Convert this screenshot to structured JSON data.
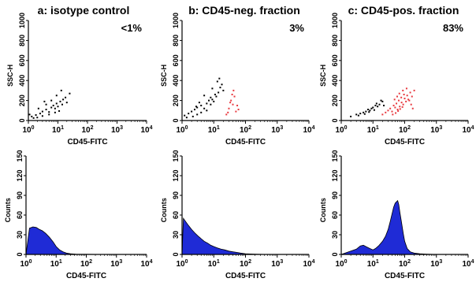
{
  "chart_data": [
    {
      "type": "scatter",
      "title": "a: isotype control",
      "annotation": "<1%",
      "xlabel": "CD45-FITC",
      "ylabel": "SSC-H",
      "x_scale": "log",
      "xlim": [
        1,
        10000
      ],
      "ylim": [
        0,
        1000
      ],
      "x_ticks": [
        1,
        10,
        100,
        1000,
        10000
      ],
      "y_ticks": [
        0,
        200,
        400,
        600,
        800,
        1000
      ],
      "series": [
        {
          "color": "#000000",
          "values": [
            [
              1.3,
              40
            ],
            [
              1.8,
              55
            ],
            [
              2.5,
              70
            ],
            [
              3,
              90
            ],
            [
              4,
              110
            ],
            [
              5,
              85
            ],
            [
              6,
              130
            ],
            [
              7,
              150
            ],
            [
              8,
              120
            ],
            [
              9,
              170
            ],
            [
              10,
              140
            ],
            [
              12,
              190
            ],
            [
              14,
              160
            ],
            [
              1.5,
              25
            ],
            [
              2,
              30
            ],
            [
              3,
              45
            ],
            [
              5,
              60
            ],
            [
              8,
              80
            ],
            [
              11,
              95
            ],
            [
              15,
              210
            ],
            [
              18,
              230
            ],
            [
              20,
              180
            ],
            [
              25,
              270
            ],
            [
              6,
              200
            ],
            [
              4,
              160
            ],
            [
              2.2,
              120
            ],
            [
              1.1,
              60
            ],
            [
              3.5,
              190
            ],
            [
              9,
              250
            ],
            [
              13,
              300
            ]
          ]
        }
      ]
    },
    {
      "type": "scatter",
      "title": "b: CD45-neg. fraction",
      "annotation": "3%",
      "xlabel": "CD45-FITC",
      "ylabel": "SSC-H",
      "x_scale": "log",
      "xlim": [
        1,
        10000
      ],
      "ylim": [
        0,
        1000
      ],
      "x_ticks": [
        1,
        10,
        100,
        1000,
        10000
      ],
      "y_ticks": [
        0,
        200,
        400,
        600,
        800,
        1000
      ],
      "series": [
        {
          "color": "#000000",
          "values": [
            [
              1.2,
              50
            ],
            [
              1.6,
              70
            ],
            [
              2,
              90
            ],
            [
              2.5,
              110
            ],
            [
              3,
              130
            ],
            [
              4,
              150
            ],
            [
              5,
              120
            ],
            [
              6,
              170
            ],
            [
              7,
              200
            ],
            [
              8,
              160
            ],
            [
              9,
              210
            ],
            [
              10,
              190
            ],
            [
              12,
              240
            ],
            [
              14,
              280
            ],
            [
              16,
              330
            ],
            [
              18,
              360
            ],
            [
              20,
              300
            ],
            [
              1.4,
              30
            ],
            [
              2.2,
              40
            ],
            [
              3,
              60
            ],
            [
              4,
              80
            ],
            [
              6,
              100
            ],
            [
              8,
              230
            ],
            [
              11,
              260
            ],
            [
              13,
              390
            ],
            [
              15,
              420
            ],
            [
              9,
              320
            ],
            [
              5,
              250
            ],
            [
              3.5,
              180
            ],
            [
              2.8,
              140
            ]
          ]
        },
        {
          "color": "#e8393f",
          "values": [
            [
              25,
              60
            ],
            [
              30,
              120
            ],
            [
              35,
              200
            ],
            [
              40,
              160
            ],
            [
              45,
              240
            ],
            [
              50,
              90
            ],
            [
              55,
              150
            ],
            [
              38,
              260
            ],
            [
              42,
              300
            ],
            [
              28,
              80
            ],
            [
              60,
              110
            ],
            [
              33,
              180
            ]
          ]
        }
      ]
    },
    {
      "type": "scatter",
      "title": "c: CD45-pos. fraction",
      "annotation": "83%",
      "xlabel": "CD45-FITC",
      "ylabel": "SSC-H",
      "x_scale": "log",
      "xlim": [
        1,
        10000
      ],
      "ylim": [
        0,
        1000
      ],
      "x_ticks": [
        1,
        10,
        100,
        1000,
        10000
      ],
      "y_ticks": [
        0,
        200,
        400,
        600,
        800,
        1000
      ],
      "series": [
        {
          "color": "#000000",
          "values": [
            [
              2,
              40
            ],
            [
              3,
              60
            ],
            [
              4,
              70
            ],
            [
              5,
              80
            ],
            [
              6,
              90
            ],
            [
              7,
              110
            ],
            [
              8,
              100
            ],
            [
              9,
              120
            ],
            [
              10,
              130
            ],
            [
              12,
              150
            ],
            [
              14,
              140
            ],
            [
              16,
              160
            ],
            [
              3.5,
              50
            ],
            [
              5.5,
              65
            ],
            [
              7.5,
              85
            ],
            [
              11,
              105
            ],
            [
              13,
              170
            ],
            [
              18,
              200
            ],
            [
              20,
              190
            ],
            [
              22,
              150
            ]
          ]
        },
        {
          "color": "#e8393f",
          "values": [
            [
              20,
              60
            ],
            [
              25,
              80
            ],
            [
              30,
              100
            ],
            [
              35,
              120
            ],
            [
              40,
              90
            ],
            [
              45,
              150
            ],
            [
              50,
              130
            ],
            [
              55,
              170
            ],
            [
              60,
              110
            ],
            [
              65,
              200
            ],
            [
              70,
              140
            ],
            [
              80,
              180
            ],
            [
              90,
              160
            ],
            [
              100,
              220
            ],
            [
              110,
              190
            ],
            [
              120,
              250
            ],
            [
              130,
              210
            ],
            [
              150,
              280
            ],
            [
              170,
              240
            ],
            [
              200,
              300
            ],
            [
              42,
              60
            ],
            [
              52,
              75
            ],
            [
              62,
              95
            ],
            [
              72,
              115
            ],
            [
              85,
              135
            ],
            [
              95,
              260
            ],
            [
              115,
              320
            ],
            [
              140,
              200
            ],
            [
              160,
              160
            ],
            [
              180,
              120
            ],
            [
              48,
              210
            ],
            [
              58,
              240
            ],
            [
              68,
              270
            ],
            [
              78,
              230
            ],
            [
              88,
              300
            ]
          ]
        }
      ]
    },
    {
      "type": "area",
      "xlabel": "CD45-FITC",
      "ylabel": "Counts",
      "x_scale": "log",
      "xlim": [
        1,
        10000
      ],
      "ylim": [
        0,
        150
      ],
      "x_ticks": [
        1,
        10,
        100,
        1000,
        10000
      ],
      "y_ticks": [
        0,
        30,
        60,
        90,
        120,
        150
      ],
      "series": [
        {
          "color": "#1f2bd6",
          "x": [
            1,
            1.3,
            1.7,
            2.2,
            2.8,
            3.5,
            4.5,
            6,
            8,
            10,
            13,
            17,
            22,
            30,
            45,
            70,
            100,
            200,
            500,
            1000,
            10000
          ],
          "y": [
            0,
            40,
            42,
            41,
            38,
            36,
            32,
            26,
            19,
            12,
            7,
            4,
            2,
            1,
            0.5,
            0.3,
            0.2,
            0.1,
            0,
            0,
            0
          ]
        }
      ]
    },
    {
      "type": "area",
      "xlabel": "CD45-FITC",
      "ylabel": "Counts",
      "x_scale": "log",
      "xlim": [
        1,
        10000
      ],
      "ylim": [
        0,
        150
      ],
      "x_ticks": [
        1,
        10,
        100,
        1000,
        10000
      ],
      "y_ticks": [
        0,
        30,
        60,
        90,
        120,
        150
      ],
      "series": [
        {
          "color": "#1f2bd6",
          "x": [
            1,
            1.1,
            1.3,
            1.6,
            2,
            2.5,
            3.2,
            4,
            5,
            6.5,
            8,
            10,
            13,
            17,
            22,
            30,
            40,
            55,
            70,
            100,
            200,
            500,
            10000
          ],
          "y": [
            0,
            55,
            50,
            44,
            38,
            33,
            28,
            24,
            20,
            17,
            14,
            12,
            10,
            8,
            7,
            5,
            4,
            3,
            2,
            1,
            0.5,
            0,
            0
          ]
        }
      ]
    },
    {
      "type": "area",
      "xlabel": "CD45-FITC",
      "ylabel": "Counts",
      "x_scale": "log",
      "xlim": [
        1,
        10000
      ],
      "ylim": [
        0,
        150
      ],
      "x_ticks": [
        1,
        10,
        100,
        1000,
        10000
      ],
      "y_ticks": [
        0,
        30,
        60,
        90,
        120,
        150
      ],
      "series": [
        {
          "color": "#1f2bd6",
          "x": [
            1,
            1.5,
            2,
            3,
            4,
            5,
            6,
            8,
            10,
            12,
            15,
            20,
            25,
            30,
            35,
            40,
            45,
            50,
            55,
            60,
            65,
            70,
            80,
            90,
            100,
            120,
            150,
            200,
            300,
            500,
            1000,
            10000
          ],
          "y": [
            0,
            3,
            5,
            8,
            13,
            14,
            12,
            9,
            7,
            9,
            13,
            20,
            28,
            38,
            50,
            62,
            72,
            78,
            80,
            82,
            76,
            65,
            48,
            32,
            20,
            9,
            4,
            2,
            1,
            0.5,
            0,
            0
          ]
        }
      ]
    }
  ]
}
